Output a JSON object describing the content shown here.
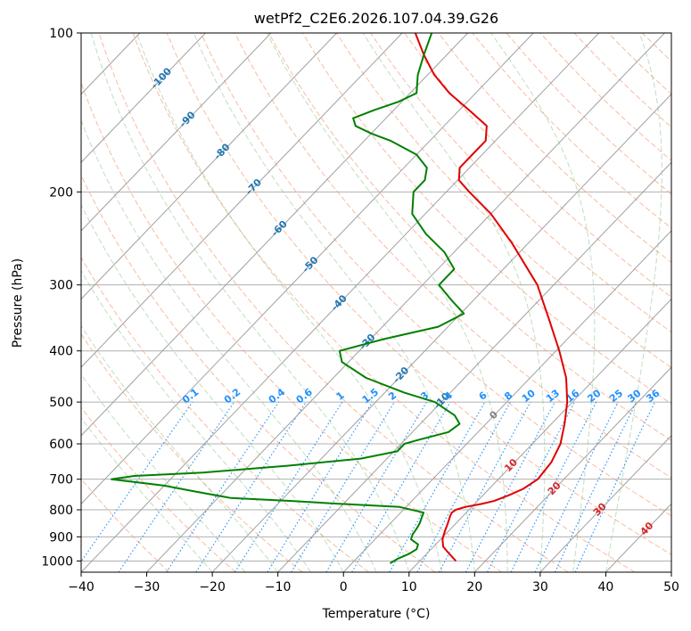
{
  "chart_data": {
    "type": "line",
    "diagram": "skew-T log-P",
    "title": "wetPf2_C2E6.2026.107.04.39.G26",
    "xlabel": "Temperature (°C)",
    "ylabel": "Pressure (hPa)",
    "xlim": [
      -40,
      50
    ],
    "ylim": [
      1050,
      100
    ],
    "y_scale": "log",
    "x_ticks": [
      -40,
      -30,
      -20,
      -10,
      0,
      10,
      20,
      30,
      40,
      50
    ],
    "x_tick_labels": [
      "−40",
      "−30",
      "−20",
      "−10",
      "0",
      "10",
      "20",
      "30",
      "40",
      "50"
    ],
    "y_ticks": [
      100,
      200,
      300,
      400,
      500,
      600,
      700,
      800,
      900,
      1000
    ],
    "y_tick_labels": [
      "100",
      "200",
      "300",
      "400",
      "500",
      "600",
      "700",
      "800",
      "900",
      "1000"
    ],
    "grid": true,
    "series": [
      {
        "role": "temperature",
        "color": "#e00000",
        "points": [
          [
            1000,
            15.5
          ],
          [
            970,
            13.5
          ],
          [
            940,
            11.5
          ],
          [
            910,
            10.3
          ],
          [
            880,
            9.5
          ],
          [
            850,
            8.8
          ],
          [
            820,
            8.0
          ],
          [
            810,
            7.8
          ],
          [
            800,
            8.0
          ],
          [
            790,
            9.0
          ],
          [
            780,
            11.0
          ],
          [
            770,
            12.5
          ],
          [
            750,
            14.0
          ],
          [
            730,
            15.2
          ],
          [
            700,
            16.0
          ],
          [
            650,
            15.6
          ],
          [
            600,
            14.3
          ],
          [
            550,
            12.0
          ],
          [
            500,
            9.2
          ],
          [
            450,
            5.5
          ],
          [
            400,
            0.5
          ],
          [
            350,
            -5.5
          ],
          [
            300,
            -12.5
          ],
          [
            250,
            -22.5
          ],
          [
            220,
            -30.0
          ],
          [
            200,
            -36.5
          ],
          [
            190,
            -39.8
          ],
          [
            180,
            -41.5
          ],
          [
            170,
            -41.5
          ],
          [
            160,
            -41.5
          ],
          [
            150,
            -43.5
          ],
          [
            140,
            -48.5
          ],
          [
            130,
            -54.0
          ],
          [
            120,
            -59.0
          ],
          [
            110,
            -63.5
          ],
          [
            100,
            -68.0
          ]
        ]
      },
      {
        "role": "dewpoint",
        "color": "#008000",
        "points": [
          [
            1010,
            5.8
          ],
          [
            990,
            6.3
          ],
          [
            970,
            7.3
          ],
          [
            950,
            7.8
          ],
          [
            930,
            7.3
          ],
          [
            910,
            5.5
          ],
          [
            890,
            5.0
          ],
          [
            870,
            4.8
          ],
          [
            850,
            4.5
          ],
          [
            830,
            4.0
          ],
          [
            810,
            3.5
          ],
          [
            790,
            -1.0
          ],
          [
            780,
            -10.0
          ],
          [
            770,
            -18.0
          ],
          [
            760,
            -28.0
          ],
          [
            740,
            -34.0
          ],
          [
            720,
            -40.0
          ],
          [
            700,
            -49.0
          ],
          [
            690,
            -46.0
          ],
          [
            680,
            -36.0
          ],
          [
            660,
            -24.0
          ],
          [
            640,
            -14.0
          ],
          [
            620,
            -9.5
          ],
          [
            600,
            -9.5
          ],
          [
            590,
            -8.0
          ],
          [
            570,
            -4.5
          ],
          [
            550,
            -4.0
          ],
          [
            530,
            -6.0
          ],
          [
            500,
            -11.0
          ],
          [
            480,
            -17.0
          ],
          [
            450,
            -25.0
          ],
          [
            420,
            -31.0
          ],
          [
            400,
            -33.0
          ],
          [
            380,
            -28.0
          ],
          [
            360,
            -21.5
          ],
          [
            340,
            -19.5
          ],
          [
            320,
            -23.5
          ],
          [
            300,
            -27.5
          ],
          [
            280,
            -27.5
          ],
          [
            260,
            -31.5
          ],
          [
            240,
            -37.0
          ],
          [
            220,
            -42.0
          ],
          [
            200,
            -45.0
          ],
          [
            190,
            -45.0
          ],
          [
            180,
            -46.5
          ],
          [
            170,
            -50.0
          ],
          [
            160,
            -56.0
          ],
          [
            155,
            -60.0
          ],
          [
            150,
            -63.5
          ],
          [
            145,
            -65.0
          ],
          [
            140,
            -63.0
          ],
          [
            135,
            -60.5
          ],
          [
            130,
            -59.0
          ],
          [
            120,
            -61.5
          ],
          [
            110,
            -63.5
          ],
          [
            100,
            -65.5
          ]
        ]
      }
    ],
    "isotherm_labels": [
      "-100",
      "-90",
      "-80",
      "-70",
      "-60",
      "-50",
      "-40",
      "-30",
      "-20",
      "-10",
      "0",
      "10",
      "20",
      "30",
      "40"
    ],
    "mixing_ratio_labels": [
      "0.1",
      "0.2",
      "0.4",
      "0.6",
      "1",
      "1.5",
      "2",
      "3",
      "4",
      "6",
      "8",
      "10",
      "13",
      "16",
      "20",
      "25",
      "30",
      "36"
    ]
  }
}
